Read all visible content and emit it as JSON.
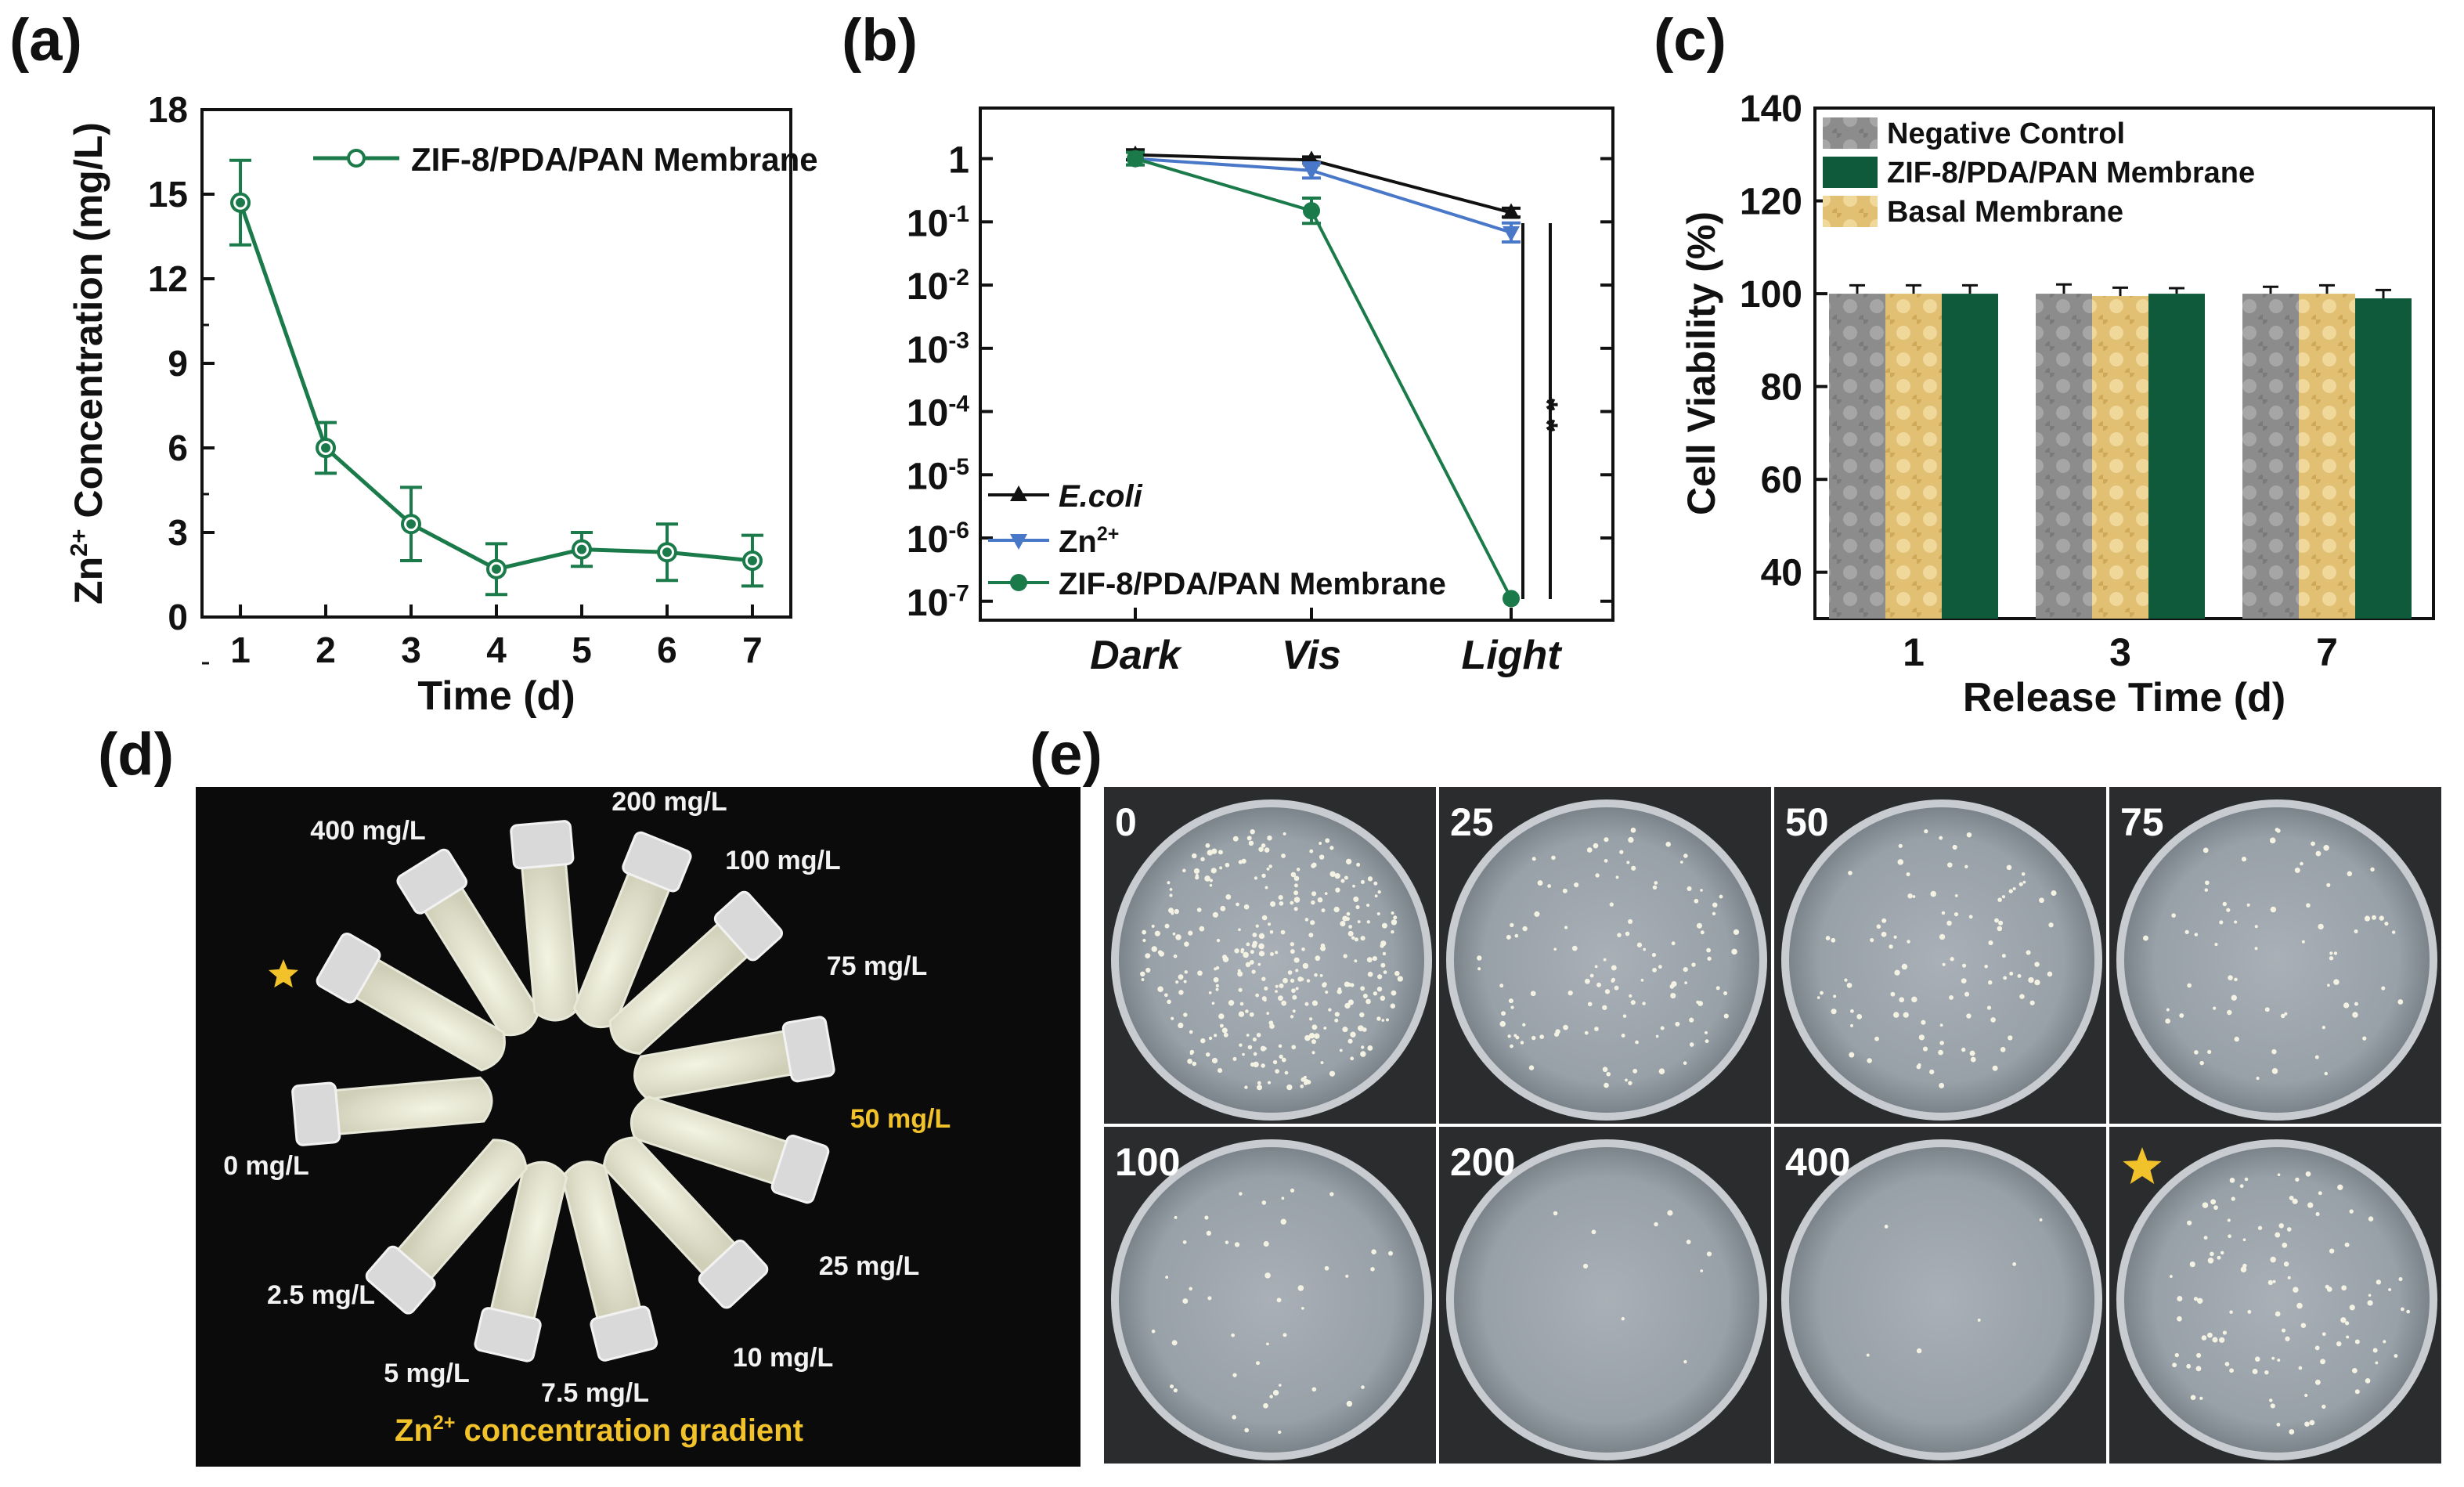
{
  "panels": {
    "a": "(a)",
    "b": "(b)",
    "c": "(c)",
    "d": "(d)",
    "e": "(e)"
  },
  "chart_data": [
    {
      "id": "a",
      "type": "line",
      "ylabel_html": [
        "Zn",
        "2+",
        " Concentration (mg/L)"
      ],
      "xlabel": "Time (d)",
      "x": [
        1,
        2,
        3,
        4,
        5,
        6,
        7
      ],
      "xticks": [
        "1",
        "2",
        "3",
        "4",
        "5",
        "6",
        "7"
      ],
      "yticks": [
        "0",
        "3",
        "6",
        "9",
        "12",
        "15",
        "18"
      ],
      "ylim": [
        0,
        18
      ],
      "xlim": [
        0.55,
        7.45
      ],
      "series": [
        {
          "name": "ZIF-8/PDA/PAN Membrane",
          "values": [
            14.7,
            6.0,
            3.3,
            1.7,
            2.4,
            2.3,
            2.0
          ],
          "errors": [
            1.5,
            0.9,
            1.3,
            0.9,
            0.6,
            1.0,
            0.9
          ],
          "color": "#1b7a4a",
          "marker": "circle"
        }
      ],
      "legend_position": "top-right"
    },
    {
      "id": "b",
      "type": "line",
      "yscale": "log",
      "ylim_exp": [
        -7.3,
        0.8
      ],
      "categories": [
        "Dark",
        "Vis",
        "Light"
      ],
      "yticks": [
        {
          "base": "1",
          "exp": ""
        },
        {
          "base": "10",
          "exp": "-1"
        },
        {
          "base": "10",
          "exp": "-2"
        },
        {
          "base": "10",
          "exp": "-3"
        },
        {
          "base": "10",
          "exp": "-4"
        },
        {
          "base": "10",
          "exp": "-5"
        },
        {
          "base": "10",
          "exp": "-6"
        },
        {
          "base": "10",
          "exp": "-7"
        }
      ],
      "ytick_exps": [
        0,
        -1,
        -2,
        -3,
        -4,
        -5,
        -6,
        -7
      ],
      "series": [
        {
          "name": "E.coli",
          "values": [
            1.15,
            0.95,
            0.14
          ],
          "errors_exp": [
            0.08,
            0.05,
            0.07
          ],
          "color": "#111111",
          "marker": "triangle-up"
        },
        {
          "name_base": "Zn",
          "name_sup": "2+",
          "values": [
            1.0,
            0.65,
            0.068
          ],
          "errors_exp": [
            0.1,
            0.12,
            0.15
          ],
          "color": "#4a78c8",
          "marker": "triangle-down"
        },
        {
          "name": "ZIF-8/PDA/PAN Membrane",
          "values": [
            1.0,
            0.15,
            1.1e-07
          ],
          "errors_exp": [
            0.1,
            0.2,
            0.0
          ],
          "color": "#1b7a4a",
          "marker": "circle"
        }
      ],
      "significance": "* *",
      "legend_position": "bottom-left"
    },
    {
      "id": "c",
      "type": "bar",
      "ylabel": "Cell Viability (%)",
      "xlabel": "Release Time (d)",
      "categories": [
        "1",
        "3",
        "7"
      ],
      "ylim": [
        30,
        140
      ],
      "yticks": [
        "40",
        "60",
        "80",
        "100",
        "120",
        "140"
      ],
      "ytick_values": [
        40,
        60,
        80,
        100,
        120,
        140
      ],
      "series": [
        {
          "name": "Negative Control",
          "values": [
            100,
            100,
            100
          ],
          "errors": [
            1.8,
            2.0,
            1.5
          ],
          "color": "#8c8c8c"
        },
        {
          "name": "Basal Membrane",
          "values": [
            100,
            99.5,
            100
          ],
          "errors": [
            1.8,
            1.8,
            1.8
          ],
          "color": "#e2c073"
        },
        {
          "name": "ZIF-8/PDA/PAN Membrane",
          "values": [
            100,
            100,
            99
          ],
          "errors": [
            1.8,
            1.2,
            1.8
          ],
          "color": "#0f5a3a"
        }
      ],
      "legend_order": [
        "Negative Control",
        "ZIF-8/PDA/PAN Membrane",
        "Basal Membrane"
      ],
      "legend_position": "top-left"
    }
  ],
  "photo_d": {
    "tube_labels": [
      "400 mg/L",
      "200 mg/L",
      "100 mg/L",
      "75 mg/L",
      "50 mg/L",
      "25 mg/L",
      "10 mg/L",
      "7.5 mg/L",
      "5 mg/L",
      "2.5 mg/L",
      "0 mg/L"
    ],
    "highlight_label": "50 mg/L",
    "caption_base": "Zn",
    "caption_sup": "2+",
    "caption_rest": " concentration gradient",
    "highlight_color": "#f2c22a"
  },
  "photo_e": {
    "dish_labels": [
      "0",
      "25",
      "50",
      "75",
      "100",
      "200",
      "400",
      ""
    ]
  }
}
